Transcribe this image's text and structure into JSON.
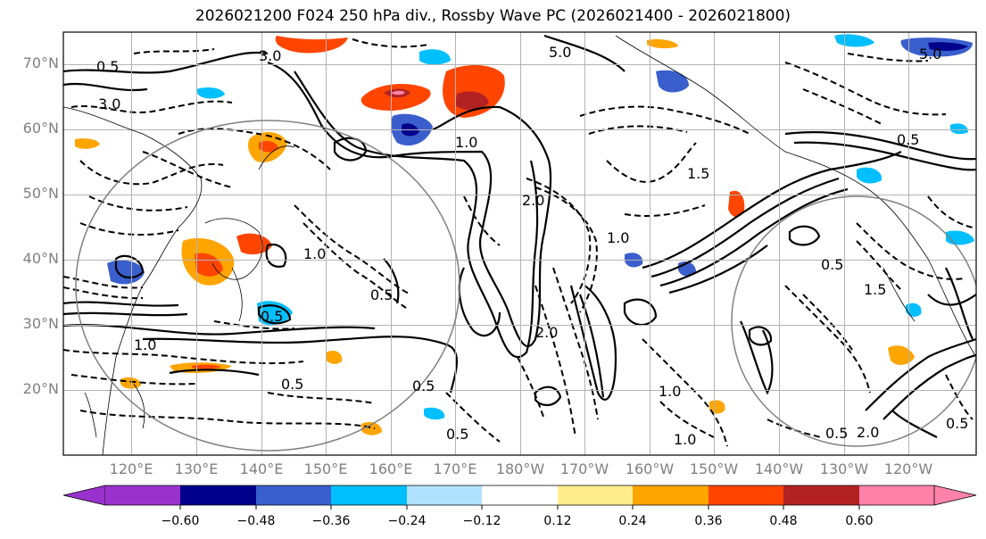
{
  "title": "2026021200 F024 250 hPa div., Rossby Wave PC (2026021400 - 2026021800)",
  "lat_labels": [
    "70°N",
    "60°N",
    "50°N",
    "40°N",
    "30°N",
    "20°N"
  ],
  "lon_labels": [
    "120°E",
    "130°E",
    "140°E",
    "150°E",
    "160°E",
    "170°E",
    "180°W",
    "170°W",
    "160°W",
    "150°W",
    "140°W",
    "130°W",
    "120°W"
  ],
  "colorbar": {
    "ticks": [
      "−0.60",
      "−0.48",
      "−0.36",
      "−0.24",
      "−0.12",
      "0.12",
      "0.24",
      "0.36",
      "0.48",
      "0.60"
    ],
    "colors": [
      "#9932cc",
      "#00008b",
      "#3a5fcd",
      "#00bfff",
      "#b0e2ff",
      "#ffffff",
      "#ffec8b",
      "#ffa500",
      "#ff4500",
      "#b22222",
      "#ff82ab"
    ]
  },
  "contour_labels": [
    "5.0",
    "5.0",
    "3.0",
    "0.5",
    "1.0",
    "1.5",
    "2.0",
    "0.5",
    "1.0",
    "0.5",
    "1.0",
    "0.5",
    "0.5",
    "0.5",
    "1.0",
    "1.0",
    "0.5",
    "2.0",
    "3.0",
    "0.5",
    "1.5",
    "0.5",
    "1.0",
    "0.5",
    "2.0"
  ]
}
